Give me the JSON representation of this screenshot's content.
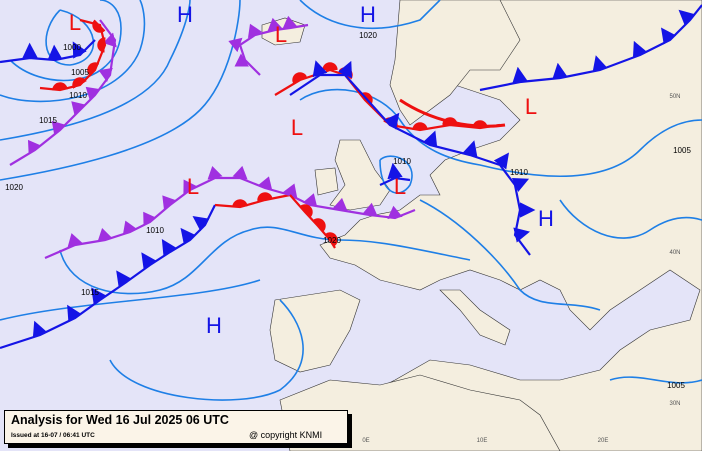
{
  "map": {
    "title": "Analysis for Wed 16 Jul 2025 06 UTC",
    "issued": "Issued at 16-07 / 06:41 UTC",
    "copyright": "@ copyright KNMI",
    "colors": {
      "sea": "#e4e4f8",
      "land": "#f4eedf",
      "isobar": "#1e7fe6",
      "cold_front": "#1414e6",
      "warm_front": "#ee1010",
      "occluded_front": "#a030e0",
      "high": "#1414e6",
      "low": "#ee1010"
    },
    "pressure_centres": [
      {
        "type": "H",
        "label": "H"
      },
      {
        "type": "H",
        "label": "H"
      },
      {
        "type": "H",
        "label": "H"
      },
      {
        "type": "H",
        "label": "H"
      },
      {
        "type": "L",
        "label": "L"
      },
      {
        "type": "L",
        "label": "L"
      },
      {
        "type": "L",
        "label": "L"
      },
      {
        "type": "L",
        "label": "L"
      },
      {
        "type": "L",
        "label": "L"
      },
      {
        "type": "L",
        "label": "L"
      }
    ],
    "isobar_labels": [
      "1000",
      "1005",
      "1010",
      "1015",
      "1020",
      "1020",
      "1010",
      "1010",
      "1010",
      "1020",
      "1015",
      "1005",
      "1005"
    ],
    "grid_labels": [
      "50N",
      "40N",
      "30N",
      "0E",
      "10E",
      "20E"
    ]
  }
}
